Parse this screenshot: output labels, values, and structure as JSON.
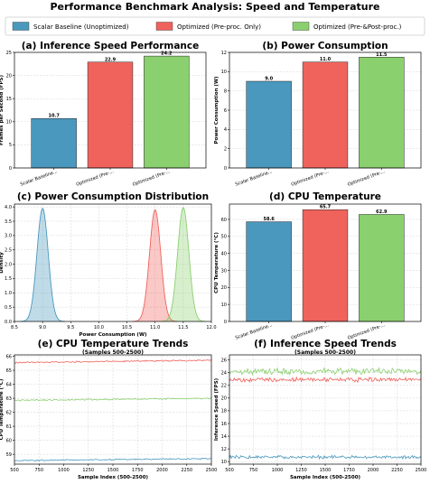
{
  "figure": {
    "title": "Performance Benchmark Analysis: Speed and Temperature",
    "legend": {
      "placement": "top",
      "items": [
        {
          "name": "Scalar Baseline (Unoptimized)",
          "color": "#4a98bd"
        },
        {
          "name": "Optimized (Pre-proc. Only)",
          "color": "#f0625c"
        },
        {
          "name": "Optimized (Pre-&Post-proc.)",
          "color": "#8bd06f"
        }
      ]
    }
  },
  "colors": {
    "baseline": "#4a98bd",
    "preproc": "#f0625c",
    "prepost": "#8bd06f"
  },
  "chart_data": [
    {
      "id": "a",
      "type": "bar",
      "title": "(a) Inference Speed Performance",
      "ylabel": "Frames per Second (FPS)",
      "categories": [
        "Scalar Baseline...",
        "Optimized (Pre-...",
        "Optimized (Pre-..."
      ],
      "values": [
        10.7,
        22.9,
        24.2
      ],
      "value_labels": [
        "10.7",
        "22.9",
        "24.2"
      ],
      "ylim": [
        0,
        25
      ],
      "yticks": [
        0,
        5,
        10,
        15,
        20,
        25
      ],
      "grid": true
    },
    {
      "id": "b",
      "type": "bar",
      "title": "(b) Power Consumption",
      "ylabel": "Power Consumption (W)",
      "categories": [
        "Scalar Baseline...",
        "Optimized (Pre-...",
        "Optimized (Pre-..."
      ],
      "values": [
        9.0,
        11.0,
        11.5
      ],
      "value_labels": [
        "9.0",
        "11.0",
        "11.5"
      ],
      "ylim": [
        0,
        12
      ],
      "yticks": [
        0,
        2,
        4,
        6,
        8,
        10,
        12
      ],
      "grid": true
    },
    {
      "id": "c",
      "type": "area",
      "title": "(c) Power Consumption Distribution",
      "xlabel": "Power Consumption (W)",
      "ylabel": "Density",
      "xlim": [
        8.5,
        12.0
      ],
      "xticks": [
        8.5,
        9.0,
        9.5,
        10.0,
        10.5,
        11.0,
        11.5,
        12.0
      ],
      "ylim": [
        0,
        4.1
      ],
      "yticks": [
        0.0,
        0.5,
        1.0,
        1.5,
        2.0,
        2.5,
        3.0,
        3.5,
        4.0
      ],
      "series": [
        {
          "mean": 9.0,
          "peak_density": 3.95,
          "std": 0.1
        },
        {
          "mean": 11.0,
          "peak_density": 3.9,
          "std": 0.1
        },
        {
          "mean": 11.5,
          "peak_density": 3.98,
          "std": 0.1
        }
      ],
      "grid": true
    },
    {
      "id": "d",
      "type": "bar",
      "title": "(d) CPU Temperature",
      "ylabel": "CPU Temperature (°C)",
      "categories": [
        "Scalar Baseline...",
        "Optimized (Pre-...",
        "Optimized (Pre-..."
      ],
      "values": [
        58.6,
        65.7,
        62.9
      ],
      "value_labels": [
        "58.6",
        "65.7",
        "62.9"
      ],
      "ylim": [
        0,
        69
      ],
      "yticks": [
        0,
        10,
        20,
        30,
        40,
        50,
        60
      ],
      "grid": true
    },
    {
      "id": "e",
      "type": "line",
      "title": "(e) CPU Temperature Trends",
      "subtitle": "(Samples 500-2500)",
      "xlabel": "Sample Index (500-2500)",
      "ylabel": "CPU Temperature (°C)",
      "xlim": [
        500,
        2500
      ],
      "xticks": [
        500,
        750,
        1000,
        1250,
        1500,
        1750,
        2000,
        2250,
        2500
      ],
      "ylim": [
        58.3,
        66.1
      ],
      "yticks": [
        59,
        60,
        61,
        62,
        63,
        64,
        65,
        66
      ],
      "series": [
        {
          "start": 58.55,
          "end": 58.7,
          "noise": 0.03
        },
        {
          "start": 65.55,
          "end": 65.72,
          "noise": 0.03
        },
        {
          "start": 62.85,
          "end": 63.0,
          "noise": 0.03
        }
      ],
      "grid": true
    },
    {
      "id": "f",
      "type": "line",
      "title": "(f) Inference Speed Trends",
      "subtitle": "(Samples 500-2500)",
      "xlabel": "Sample Index (500-2500)",
      "ylabel": "Inference Speed (FPS)",
      "xlim": [
        500,
        2500
      ],
      "xticks": [
        500,
        750,
        1000,
        1250,
        1500,
        1750,
        2000,
        2250,
        2500
      ],
      "ylim": [
        9.6,
        26.8
      ],
      "yticks": [
        10,
        12,
        14,
        16,
        18,
        20,
        22,
        24,
        26
      ],
      "series": [
        {
          "start": 10.7,
          "end": 10.7,
          "noise": 0.15
        },
        {
          "start": 22.9,
          "end": 22.9,
          "noise": 0.2
        },
        {
          "start": 24.2,
          "end": 24.2,
          "noise": 0.3
        }
      ],
      "grid": true
    }
  ]
}
